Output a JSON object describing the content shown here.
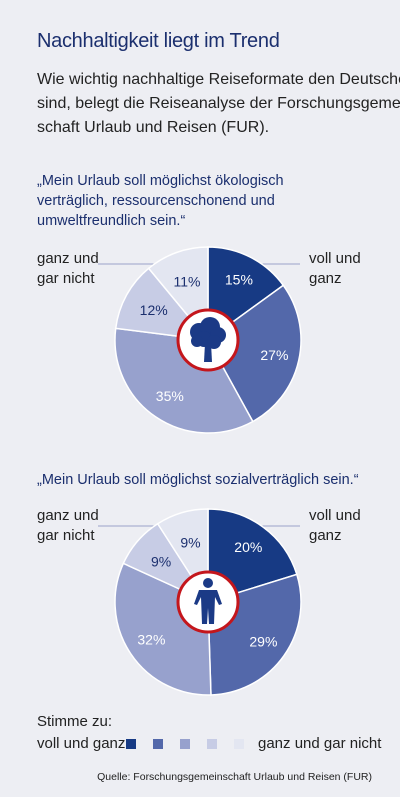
{
  "title": "Nachhaltigkeit liegt im Trend",
  "intro": [
    "Wie wichtig nachhaltige Reiseformate den Deutschen",
    "sind, belegt die Reiseanalyse der Forschungsgemein-",
    "schaft Urlaub und Reisen (FUR)."
  ],
  "colors": [
    "#173a84",
    "#5368aa",
    "#97a1cd",
    "#c7cce5",
    "#e3e6f1"
  ],
  "label_left": [
    "ganz und",
    "gar nicht"
  ],
  "label_right": [
    "voll und",
    "ganz"
  ],
  "chart_data": [
    {
      "type": "pie",
      "title": "„Mein Urlaub soll möglichst ökologisch verträglich, ressourcenschonend und umweltfreundlich sein.“",
      "title_lines": [
        "„Mein Urlaub soll möglichst ökologisch",
        "verträglich, ressourcenschonend und",
        "umweltfreundlich sein.“"
      ],
      "categories": [
        "voll und ganz",
        "2",
        "3",
        "4",
        "ganz und gar nicht"
      ],
      "values": [
        15,
        27,
        35,
        12,
        11
      ],
      "labels": [
        "15%",
        "27%",
        "35%",
        "12%",
        "11%"
      ],
      "icon": "tree-icon"
    },
    {
      "type": "pie",
      "title": "„Mein Urlaub soll möglichst sozialverträglich sein.“",
      "title_lines": [
        "„Mein Urlaub soll möglichst sozialverträglich sein.“"
      ],
      "categories": [
        "voll und ganz",
        "2",
        "3",
        "4",
        "ganz und gar nicht"
      ],
      "values": [
        20,
        29,
        32,
        9,
        9
      ],
      "labels": [
        "20%",
        "29%",
        "32%",
        "9%",
        "9%"
      ],
      "icon": "person-icon"
    }
  ],
  "legend": {
    "title": "Stimme zu:",
    "left": "voll und ganz",
    "right": "ganz und gar nicht"
  },
  "source": "Quelle: Forschungsgemeinschaft Urlaub und Reisen (FUR)"
}
